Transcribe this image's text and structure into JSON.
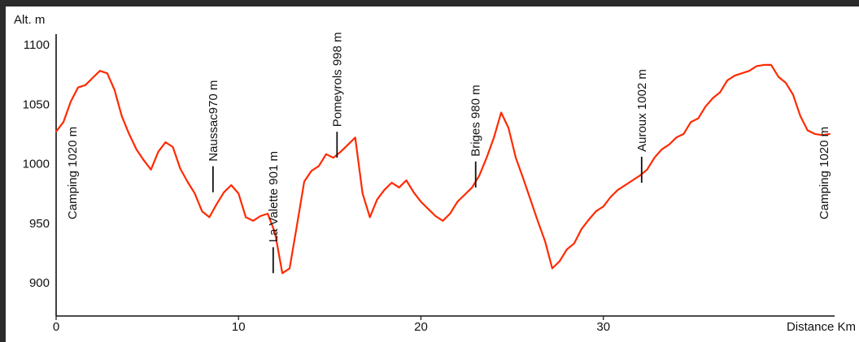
{
  "chart_data": {
    "type": "line",
    "title": "",
    "ylabel": "Alt. m",
    "xlabel": "Distance Km",
    "xlim": [
      0,
      42.5
    ],
    "ylim": [
      873,
      1105
    ],
    "x_ticks": [
      0,
      10,
      20,
      30
    ],
    "x_tick_labels": [
      "0",
      "10",
      "20",
      "30"
    ],
    "y_ticks": [
      900,
      950,
      1000,
      1050,
      1100
    ],
    "y_tick_labels": [
      "900",
      "950",
      "1000",
      "1050",
      "1100"
    ],
    "grid": false,
    "line_color": "#ff2a00",
    "series": [
      {
        "name": "",
        "x": [
          0,
          0.4,
          0.8,
          1.2,
          1.6,
          2.0,
          2.4,
          2.8,
          3.2,
          3.6,
          4.0,
          4.4,
          4.8,
          5.2,
          5.6,
          6.0,
          6.4,
          6.8,
          7.2,
          7.6,
          8.0,
          8.4,
          8.8,
          9.2,
          9.6,
          10.0,
          10.4,
          10.8,
          11.2,
          11.6,
          12.0,
          12.4,
          12.8,
          13.2,
          13.6,
          14.0,
          14.4,
          14.8,
          15.2,
          15.6,
          16.0,
          16.4,
          16.8,
          17.2,
          17.6,
          18.0,
          18.4,
          18.8,
          19.2,
          19.6,
          20.0,
          20.4,
          20.8,
          21.2,
          21.6,
          22.0,
          22.4,
          22.8,
          23.2,
          23.6,
          24.0,
          24.4,
          24.8,
          25.2,
          25.6,
          26.0,
          26.4,
          26.8,
          27.2,
          27.6,
          28.0,
          28.4,
          28.8,
          29.2,
          29.6,
          30.0,
          30.4,
          30.8,
          31.2,
          31.6,
          32.0,
          32.4,
          32.8,
          33.2,
          33.6,
          34.0,
          34.4,
          34.8,
          35.2,
          35.6,
          36.0,
          36.4,
          36.8,
          37.2,
          37.6,
          38.0,
          38.4,
          38.8,
          39.2,
          39.6,
          40.0,
          40.4,
          40.8,
          41.2,
          41.6,
          42.0,
          42.4
        ],
        "y": [
          1027,
          1035,
          1052,
          1064,
          1066,
          1072,
          1078,
          1076,
          1062,
          1040,
          1025,
          1012,
          1003,
          995,
          1010,
          1018,
          1014,
          996,
          985,
          975,
          960,
          955,
          966,
          976,
          982,
          975,
          955,
          952,
          956,
          958,
          942,
          908,
          912,
          948,
          985,
          994,
          998,
          1008,
          1005,
          1010,
          1016,
          1022,
          975,
          955,
          970,
          978,
          984,
          980,
          986,
          976,
          968,
          962,
          956,
          952,
          958,
          968,
          974,
          980,
          990,
          1005,
          1022,
          1043,
          1030,
          1005,
          988,
          970,
          952,
          935,
          912,
          918,
          928,
          933,
          945,
          953,
          960,
          964,
          972,
          978,
          982,
          986,
          990,
          995,
          1005,
          1012,
          1016,
          1022,
          1025,
          1035,
          1038,
          1048,
          1055,
          1060,
          1070,
          1074,
          1076,
          1078,
          1082,
          1083,
          1083,
          1073,
          1068,
          1058,
          1040,
          1028,
          1025,
          1024,
          1025
        ]
      }
    ],
    "annotations": [
      {
        "label": "Camping 1020 m",
        "x": 0.9,
        "y": 960,
        "marker": false
      },
      {
        "label": "Naussac970 m",
        "x": 8.6,
        "y": 976,
        "marker": true
      },
      {
        "label": "La Valette 901 m",
        "x": 11.9,
        "y": 908,
        "marker": true
      },
      {
        "label": "Pomeyrols 998 m",
        "x": 15.4,
        "y": 1005,
        "marker": true
      },
      {
        "label": "Briges 980 m",
        "x": 23.0,
        "y": 980,
        "marker": true
      },
      {
        "label": "Auroux 1002 m",
        "x": 32.1,
        "y": 984,
        "marker": true
      },
      {
        "label": "Camping 1020 m",
        "x": 42.1,
        "y": 960,
        "marker": false
      }
    ]
  }
}
